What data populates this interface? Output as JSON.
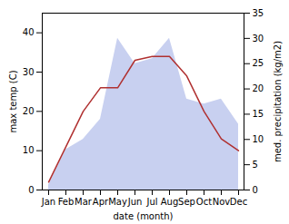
{
  "chart_data": {
    "type": "line",
    "categories": [
      "Jan",
      "Feb",
      "Mar",
      "Apr",
      "May",
      "Jun",
      "Jul",
      "Aug",
      "Sep",
      "Oct",
      "Nov",
      "Dec"
    ],
    "series": [
      {
        "type": "area",
        "axis": "y2",
        "color": "#c8d0f0",
        "values": [
          1,
          8,
          10,
          14,
          30,
          25,
          26,
          30,
          18,
          17,
          18,
          13
        ]
      },
      {
        "type": "line",
        "color": "#b03030",
        "values": [
          2,
          11,
          20,
          26,
          26,
          33,
          34,
          34,
          29,
          20,
          13,
          10
        ]
      }
    ],
    "xlabel": "date (month)",
    "ylabel": "max temp (C)",
    "y2label": "med. precipitation (kg/m2)",
    "ylim": [
      0,
      45
    ],
    "yticks": [
      0,
      10,
      20,
      30,
      40
    ],
    "y2lim": [
      0,
      35
    ],
    "y2ticks": [
      0,
      5,
      10,
      15,
      20,
      25,
      30,
      35
    ]
  }
}
